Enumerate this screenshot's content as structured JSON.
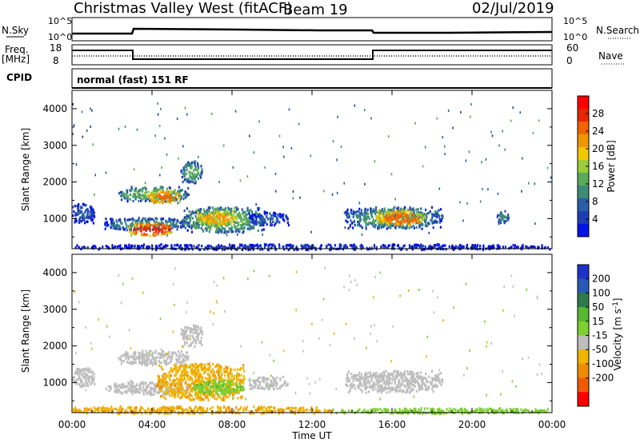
{
  "header": {
    "station": "Christmas Valley West (fitACF)",
    "beam": "Beam 19",
    "date": "02/Jul/2019"
  },
  "panels": {
    "nsky_label": "N.Sky",
    "nsearch_label": "N.Search",
    "nsky_ticks": [
      "10^5",
      "10^0"
    ],
    "nsearch_ticks": [
      "10^5",
      "10^0"
    ],
    "freq_label": "Freq.",
    "freq_unit": "[MHz]",
    "freq_ticks": [
      "18",
      "8"
    ],
    "nave_label": "Nave",
    "nave_ticks": [
      "60",
      "0"
    ],
    "cpid_label": "CPID",
    "cpid_value": "normal (fast) 151 RF"
  },
  "colors": {
    "power": [
      "#0014e6",
      "#1e3cb4",
      "#2a5ea8",
      "#3c8c78",
      "#5aaa5a",
      "#9ccc3c",
      "#f0c800",
      "#f09600",
      "#f06400",
      "#e62800",
      "#ff0000"
    ],
    "velocity_pos": [
      "#1e32c8",
      "#285ab4",
      "#2e7a4a",
      "#55b830",
      "#7fd030"
    ],
    "velocity_gs": "#bebebe",
    "velocity_neg": [
      "#f0b400",
      "#f08c00",
      "#f05a00",
      "#ff0000"
    ]
  },
  "chart_data": [
    {
      "type": "heatmap",
      "name": "power",
      "ylabel": "Slant Range [km]",
      "xlabel": "",
      "ylim": [
        180,
        4500
      ],
      "yticks": [
        "1000",
        "2000",
        "3000",
        "4000"
      ],
      "colorbar_label": "Power [dB]",
      "colorbar_ticks": [
        "4",
        "8",
        "12",
        "16",
        "20",
        "24",
        "28"
      ],
      "colorbar_range": [
        0,
        32
      ],
      "echo_regions": [
        {
          "t0": 0.0,
          "t1": 1.1,
          "r0": 900,
          "r1": 1450,
          "level": 8
        },
        {
          "t0": 1.6,
          "t1": 5.9,
          "r0": 700,
          "r1": 1050,
          "level": 12
        },
        {
          "t0": 2.8,
          "t1": 5.0,
          "r0": 560,
          "r1": 900,
          "level": 30
        },
        {
          "t0": 2.3,
          "t1": 5.8,
          "r0": 1500,
          "r1": 1900,
          "level": 16
        },
        {
          "t0": 3.8,
          "t1": 5.4,
          "r0": 1450,
          "r1": 1800,
          "level": 26
        },
        {
          "t0": 5.4,
          "t1": 6.5,
          "r0": 2000,
          "r1": 2600,
          "level": 14
        },
        {
          "t0": 5.5,
          "t1": 9.6,
          "r0": 650,
          "r1": 1350,
          "level": 16
        },
        {
          "t0": 6.2,
          "t1": 8.2,
          "r0": 850,
          "r1": 1250,
          "level": 24
        },
        {
          "t0": 8.8,
          "t1": 10.8,
          "r0": 850,
          "r1": 1200,
          "level": 9
        },
        {
          "t0": 13.6,
          "t1": 18.5,
          "r0": 750,
          "r1": 1350,
          "level": 14
        },
        {
          "t0": 15.2,
          "t1": 17.6,
          "r0": 850,
          "r1": 1250,
          "level": 27
        },
        {
          "t0": 21.2,
          "t1": 21.8,
          "r0": 900,
          "r1": 1250,
          "level": 12
        },
        {
          "t0": 0.0,
          "t1": 24.0,
          "r0": 180,
          "r1": 330,
          "level": 6
        }
      ]
    },
    {
      "type": "heatmap",
      "name": "velocity",
      "ylabel": "Slant Range [km]",
      "xlabel": "Time UT",
      "xlim": [
        "00:00",
        "24:00"
      ],
      "xticks": [
        "00:00",
        "04:00",
        "08:00",
        "12:00",
        "16:00",
        "20:00",
        "00:00"
      ],
      "ylim": [
        180,
        4500
      ],
      "yticks": [
        "1000",
        "2000",
        "3000",
        "4000"
      ],
      "colorbar_label": "Velocity [m s^-1]",
      "colorbar_ticks": [
        "200",
        "100",
        "50",
        "15",
        "-15",
        "-50",
        "-100",
        "-200"
      ],
      "echo_regions": [
        {
          "t0": 0.0,
          "t1": 1.1,
          "r0": 900,
          "r1": 1450,
          "v": 0
        },
        {
          "t0": 1.6,
          "t1": 5.9,
          "r0": 700,
          "r1": 1050,
          "v": 0
        },
        {
          "t0": 4.2,
          "t1": 8.6,
          "r0": 550,
          "r1": 1550,
          "v": -40
        },
        {
          "t0": 6.0,
          "t1": 8.6,
          "r0": 700,
          "r1": 1100,
          "v": 40
        },
        {
          "t0": 2.3,
          "t1": 5.8,
          "r0": 1500,
          "r1": 1900,
          "v": 0
        },
        {
          "t0": 5.4,
          "t1": 6.5,
          "r0": 2000,
          "r1": 2600,
          "v": 0
        },
        {
          "t0": 8.8,
          "t1": 10.8,
          "r0": 850,
          "r1": 1200,
          "v": 0
        },
        {
          "t0": 13.6,
          "t1": 18.5,
          "r0": 750,
          "r1": 1350,
          "v": 0
        },
        {
          "t0": 0.0,
          "t1": 13.0,
          "r0": 180,
          "r1": 380,
          "v": -40
        },
        {
          "t0": 13.0,
          "t1": 24.0,
          "r0": 180,
          "r1": 330,
          "v": 30
        }
      ]
    }
  ]
}
